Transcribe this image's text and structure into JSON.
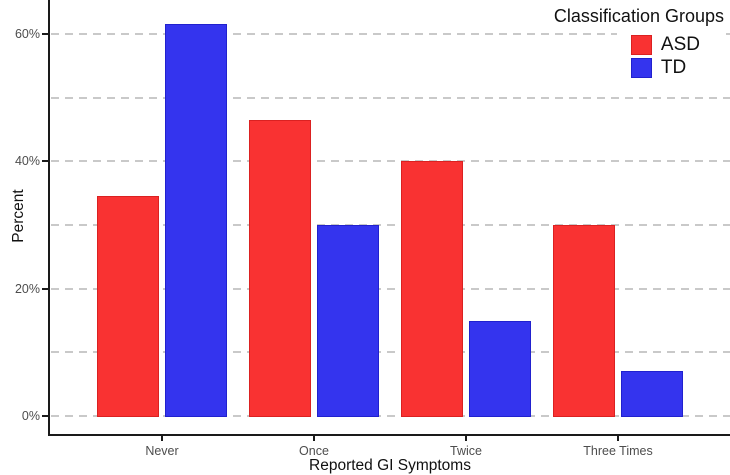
{
  "chart_data": {
    "type": "bar",
    "title": "",
    "xlabel": "Reported GI Symptoms",
    "ylabel": "Percent",
    "categories": [
      "Never",
      "Once",
      "Twice",
      "Three Times"
    ],
    "series": [
      {
        "name": "ASD",
        "fill": "#F93232",
        "stroke": "#DB2121",
        "values": [
          34.5,
          46.5,
          40,
          30
        ]
      },
      {
        "name": "TD",
        "fill": "#3434EE",
        "stroke": "#2121CE",
        "values": [
          61.5,
          30,
          15,
          7
        ]
      }
    ],
    "ylim": [
      0,
      65
    ],
    "ytick_values": [
      0,
      20,
      40,
      60
    ],
    "ytick_labels": [
      "0%",
      "20%",
      "40%",
      "60%"
    ],
    "ytick_suffix": "%",
    "grid_values": [
      0,
      10,
      20,
      30,
      40,
      50,
      60
    ],
    "grid": {
      "style": "dashed",
      "color": "#C9C9C9",
      "on": true
    },
    "legend": {
      "title": "Classification Groups",
      "position": "top-right"
    },
    "axis_color": "#1A1A1A",
    "tick_label_color": "#4D4D4D"
  }
}
